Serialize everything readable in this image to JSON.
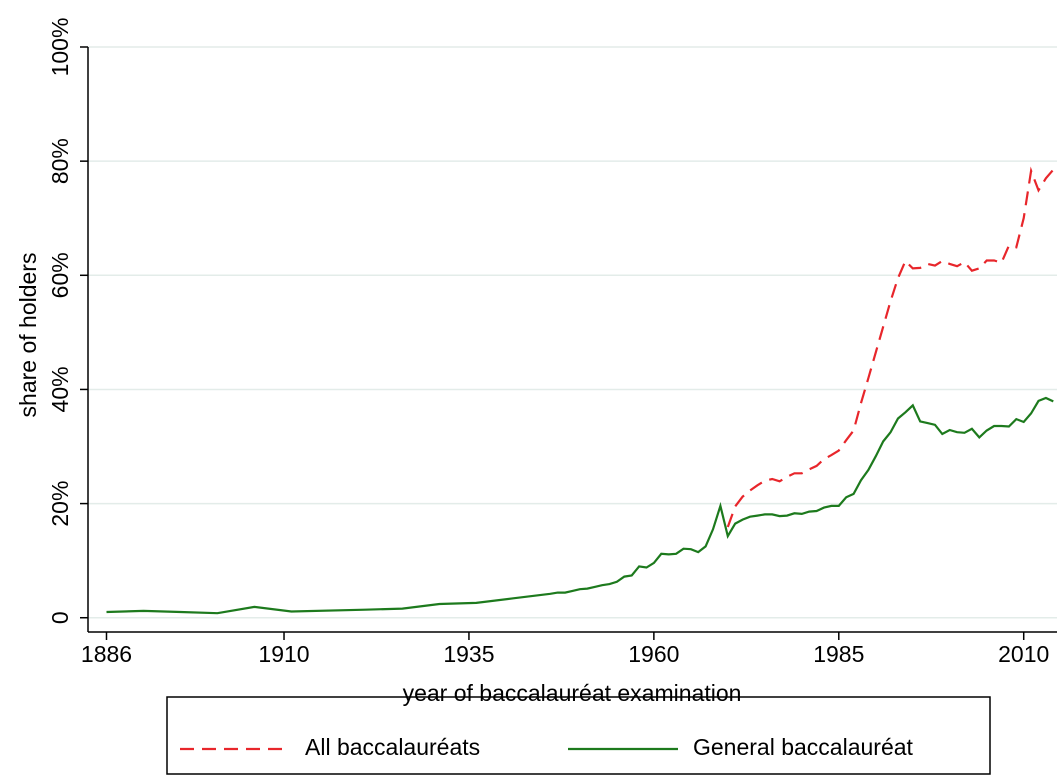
{
  "chart_data": {
    "type": "line",
    "xlabel": "year of baccalauréat examination",
    "ylabel": "share of holders",
    "xlim": [
      1883.5,
      2014.5
    ],
    "xticks": [
      1886,
      1910,
      1935,
      1960,
      1985,
      2010
    ],
    "ylim": [
      -2.5,
      100
    ],
    "yticks": [
      0,
      {
        "value": 20,
        "label": "20%"
      },
      {
        "value": 40,
        "label": "40%"
      },
      {
        "value": 60,
        "label": "60%"
      },
      {
        "value": 80,
        "label": "80%"
      },
      {
        "value": 100,
        "label": "100%"
      }
    ],
    "grid": true,
    "legend": "bottom",
    "series": [
      {
        "name": "All baccalauréats",
        "color": "#e8262b",
        "dash": true,
        "x": [
          1970,
          1971,
          1972,
          1973,
          1974,
          1975,
          1976,
          1977,
          1978,
          1979,
          1980,
          1981,
          1982,
          1983,
          1984,
          1985,
          1986,
          1987,
          1988,
          1989,
          1990,
          1991,
          1992,
          1993,
          1994,
          1995,
          1996,
          1997,
          1998,
          1999,
          2000,
          2001,
          2002,
          2003,
          2004,
          2005,
          2006,
          2007,
          2008,
          2009,
          2010,
          2011,
          2012,
          2013,
          2014
        ],
        "values": [
          15.9,
          19.5,
          21.2,
          22.3,
          23.2,
          24.0,
          24.3,
          23.9,
          24.7,
          25.3,
          25.3,
          26.0,
          26.6,
          27.8,
          28.5,
          29.3,
          31.1,
          32.8,
          37.6,
          42.0,
          46.5,
          51.0,
          55.5,
          59.5,
          62.5,
          61.2,
          61.3,
          62.0,
          61.7,
          62.5,
          62.0,
          61.6,
          62.3,
          60.8,
          61.2,
          62.6,
          62.6,
          62.2,
          65.2,
          64.9,
          70.0,
          78.3,
          74.9,
          77.0,
          78.5
        ]
      },
      {
        "name": "General baccalauréat",
        "color": "#1d7a1d",
        "dash": false,
        "x": [
          1886,
          1891,
          1896,
          1901,
          1906,
          1911,
          1921,
          1926,
          1931,
          1936,
          1941,
          1946,
          1947,
          1948,
          1949,
          1950,
          1951,
          1952,
          1953,
          1954,
          1955,
          1956,
          1957,
          1958,
          1959,
          1960,
          1961,
          1962,
          1963,
          1964,
          1965,
          1966,
          1967,
          1968,
          1969,
          1970,
          1971,
          1972,
          1973,
          1974,
          1975,
          1976,
          1977,
          1978,
          1979,
          1980,
          1981,
          1982,
          1983,
          1984,
          1985,
          1986,
          1987,
          1988,
          1989,
          1990,
          1991,
          1992,
          1993,
          1994,
          1995,
          1996,
          1997,
          1998,
          1999,
          2000,
          2001,
          2002,
          2003,
          2004,
          2005,
          2006,
          2007,
          2008,
          2009,
          2010,
          2011,
          2012,
          2013,
          2014
        ],
        "values": [
          1.0,
          1.2,
          1.0,
          0.8,
          1.9,
          1.1,
          1.4,
          1.6,
          2.4,
          2.6,
          3.4,
          4.2,
          4.4,
          4.4,
          4.7,
          5.0,
          5.1,
          5.4,
          5.7,
          5.9,
          6.3,
          7.2,
          7.4,
          9.0,
          8.8,
          9.6,
          11.2,
          11.1,
          11.2,
          12.1,
          12.0,
          11.5,
          12.5,
          15.5,
          19.6,
          14.3,
          16.5,
          17.2,
          17.7,
          17.9,
          18.1,
          18.1,
          17.8,
          17.9,
          18.3,
          18.2,
          18.6,
          18.7,
          19.3,
          19.6,
          19.6,
          21.1,
          21.7,
          24.1,
          25.9,
          28.3,
          30.9,
          32.5,
          34.9,
          36.0,
          37.2,
          34.4,
          34.1,
          33.8,
          32.2,
          32.9,
          32.5,
          32.4,
          33.1,
          31.6,
          32.8,
          33.6,
          33.6,
          33.5,
          34.8,
          34.3,
          35.8,
          38.0,
          38.5,
          37.9
        ]
      }
    ]
  }
}
